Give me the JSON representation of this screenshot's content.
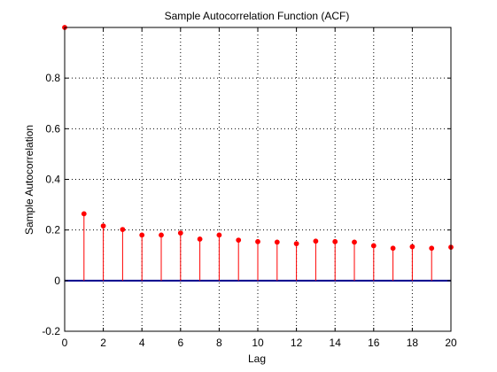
{
  "chart_data": {
    "type": "stem",
    "title": "Sample Autocorrelation Function (ACF)",
    "xlabel": "Lag",
    "ylabel": "Sample Autocorrelation",
    "xlim": [
      0,
      20
    ],
    "ylim": [
      -0.2,
      1.0
    ],
    "xticks": [
      0,
      2,
      4,
      6,
      8,
      10,
      12,
      14,
      16,
      18,
      20
    ],
    "yticks": [
      -0.2,
      0,
      0.2,
      0.4,
      0.6,
      0.8
    ],
    "xtick_labels": [
      "0",
      "2",
      "4",
      "6",
      "8",
      "10",
      "12",
      "14",
      "16",
      "18",
      "20"
    ],
    "ytick_labels": [
      "-0.2",
      "0",
      "0.2",
      "0.4",
      "0.6",
      "0.8"
    ],
    "grid": true,
    "lags": [
      0,
      1,
      2,
      3,
      4,
      5,
      6,
      7,
      8,
      9,
      10,
      11,
      12,
      13,
      14,
      15,
      16,
      17,
      18,
      19,
      20
    ],
    "values": [
      1.0,
      0.264,
      0.216,
      0.202,
      0.18,
      0.18,
      0.188,
      0.164,
      0.18,
      0.16,
      0.154,
      0.152,
      0.146,
      0.156,
      0.154,
      0.152,
      0.138,
      0.128,
      0.134,
      0.128,
      0.132
    ],
    "colors": {
      "stem": "#ff0000",
      "marker": "#ff0000",
      "zero_line": "#00008b",
      "grid": "#000000",
      "axes": "#000000"
    }
  }
}
